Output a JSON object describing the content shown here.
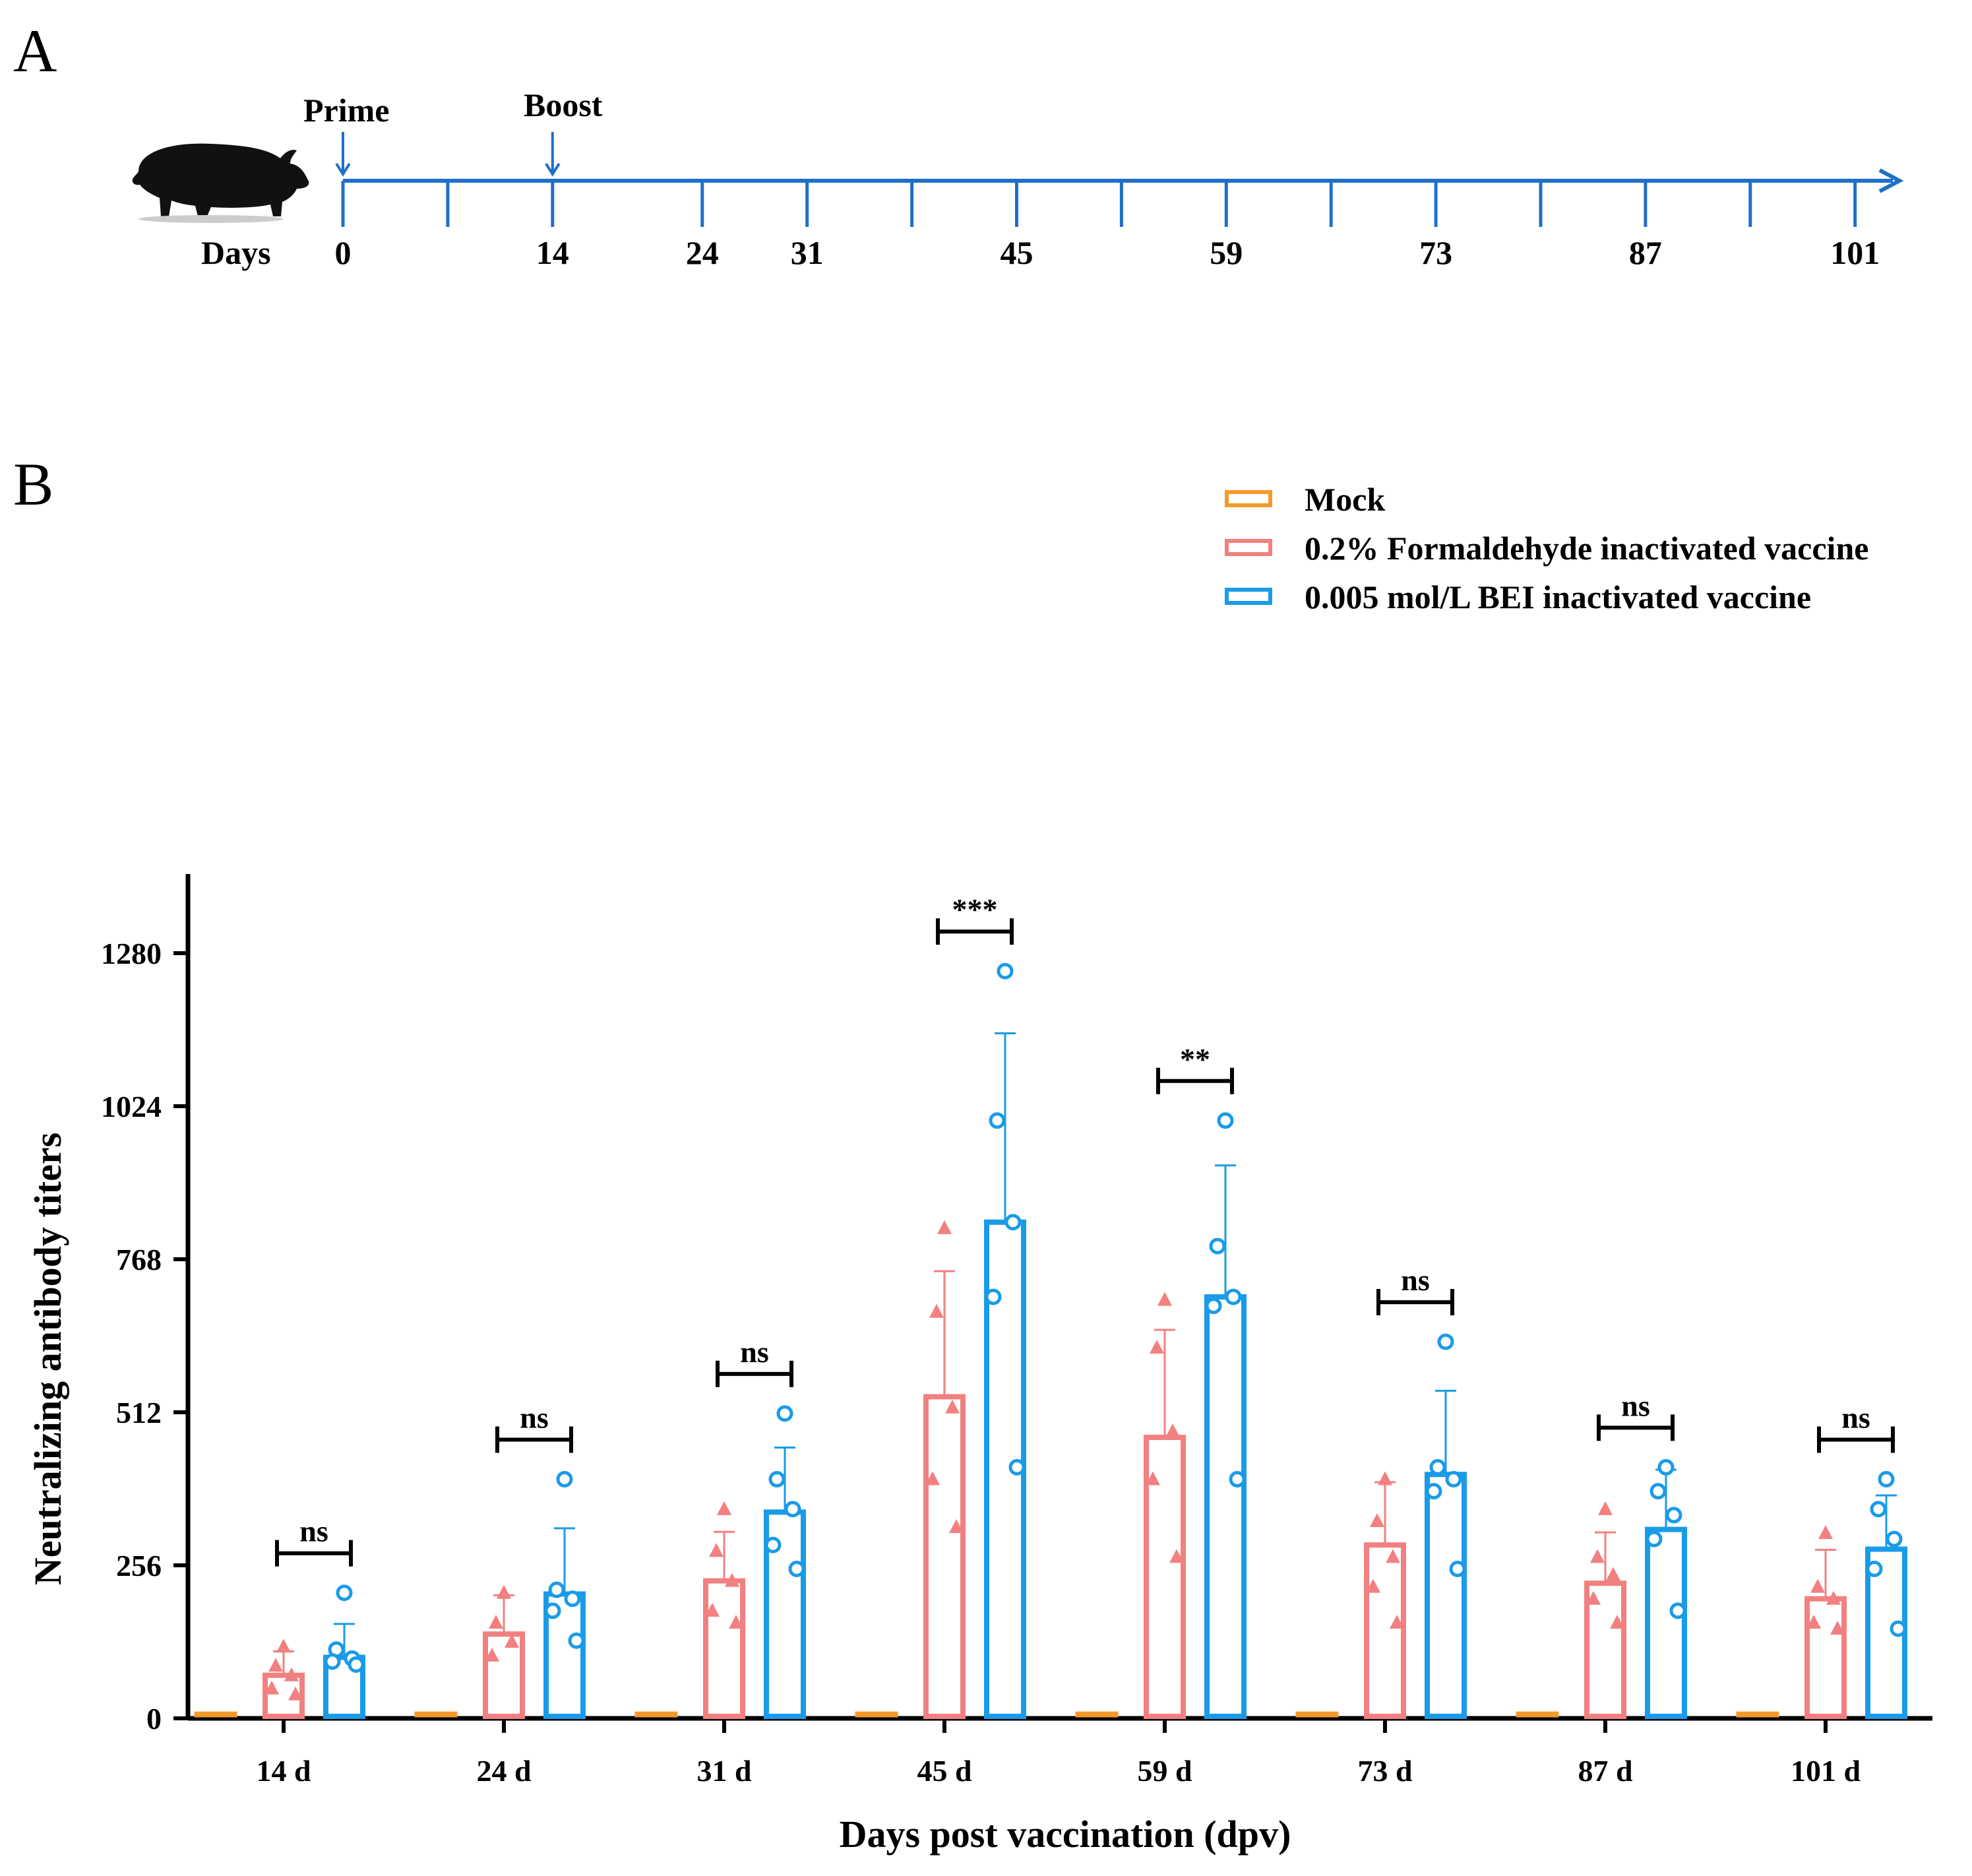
{
  "panel_a": {
    "letter": "A",
    "prime_label": "Prime",
    "boost_label": "Boost",
    "days_label": "Days",
    "day_marks": [
      0,
      14,
      24,
      31,
      45,
      59,
      73,
      87,
      101
    ],
    "line_color": "#1f6fc8",
    "icon": "pig-silhouette-icon"
  },
  "panel_b": {
    "letter": "B"
  },
  "chart_data": {
    "type": "bar",
    "ylabel": "Neutralizing antibody titers",
    "xlabel": "Days post vaccination (dpv)",
    "ylim": [
      0,
      1450
    ],
    "yticks": [
      0,
      256,
      512,
      768,
      1024,
      1280
    ],
    "categories": [
      "14 d",
      "24 d",
      "31 d",
      "45 d",
      "59 d",
      "73 d",
      "87 d",
      "101 d"
    ],
    "series": [
      {
        "name": "Mock",
        "color": "#f39a2c",
        "marker": "square",
        "values": [
          2,
          2,
          2,
          2,
          2,
          2,
          2,
          2
        ],
        "error": [
          0,
          0,
          0,
          0,
          0,
          0,
          0,
          0
        ],
        "points": [
          [],
          [],
          [],
          [],
          [],
          [],
          [],
          []
        ]
      },
      {
        "name": "0.2% Formaldehyde inactivated vaccine",
        "color": "#f28080",
        "marker": "triangle",
        "values": [
          72,
          141,
          230,
          538,
          470,
          290,
          226,
          200
        ],
        "error": [
          40,
          65,
          82,
          210,
          180,
          105,
          85,
          82
        ],
        "points": [
          [
            120,
            88,
            72,
            50,
            40
          ],
          [
            210,
            160,
            128,
            105
          ],
          [
            350,
            280,
            230,
            180,
            160
          ],
          [
            820,
            680,
            520,
            400,
            320
          ],
          [
            700,
            620,
            480,
            400,
            270
          ],
          [
            400,
            330,
            270,
            220,
            160
          ],
          [
            350,
            270,
            240,
            200,
            160
          ],
          [
            310,
            220,
            200,
            160,
            150
          ]
        ],
        "sd_unused": null
      },
      {
        "name": "0.005 mol/L BEI inactivated vaccine",
        "color": "#1a9be8",
        "marker": "circle",
        "values": [
          102,
          208,
          345,
          830,
          705,
          408,
          316,
          283
        ],
        "error": [
          56,
          110,
          108,
          316,
          220,
          140,
          100,
          90
        ],
        "points": [
          [
            210,
            115,
            100,
            95,
            90
          ],
          [
            400,
            215,
            200,
            180,
            130
          ],
          [
            510,
            400,
            350,
            290,
            250
          ],
          [
            1250,
            1000,
            830,
            705,
            420
          ],
          [
            1000,
            790,
            705,
            690,
            400
          ],
          [
            630,
            420,
            400,
            380,
            250
          ],
          [
            420,
            380,
            340,
            300,
            180
          ],
          [
            400,
            350,
            300,
            250,
            150
          ]
        ]
      }
    ],
    "significance": [
      {
        "category": "14 d",
        "label": "ns"
      },
      {
        "category": "24 d",
        "label": "ns"
      },
      {
        "category": "31 d",
        "label": "ns"
      },
      {
        "category": "45 d",
        "label": "***"
      },
      {
        "category": "59 d",
        "label": "**"
      },
      {
        "category": "73 d",
        "label": "ns"
      },
      {
        "category": "87 d",
        "label": "ns"
      },
      {
        "category": "101 d",
        "label": "ns"
      }
    ],
    "legend_position": "top-right",
    "grid": false
  }
}
